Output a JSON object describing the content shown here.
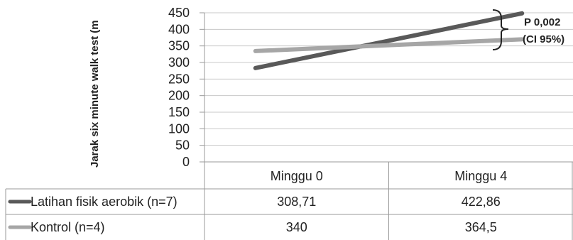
{
  "chart_data": {
    "type": "line",
    "ylabel": "Jarak six minute walk test (m",
    "categories": [
      "Minggu 0",
      "Minggu 4"
    ],
    "ylim": [
      0,
      450
    ],
    "yticks": [
      "0",
      "50",
      "100",
      "150",
      "200",
      "250",
      "300",
      "350",
      "400",
      "450"
    ],
    "grid": true,
    "series": [
      {
        "name": "Latihan fisik aerobik (n=7)",
        "values": [
          308.71,
          422.86
        ],
        "labels": [
          "308,71",
          "422,86"
        ],
        "color": "#595959"
      },
      {
        "name": "Kontrol (n=4)",
        "values": [
          340,
          364.5
        ],
        "labels": [
          "340",
          "364,5"
        ],
        "color": "#a6a6a6"
      }
    ],
    "annotation": {
      "line1": "P 0,002",
      "line2": "(CI 95%)"
    }
  }
}
